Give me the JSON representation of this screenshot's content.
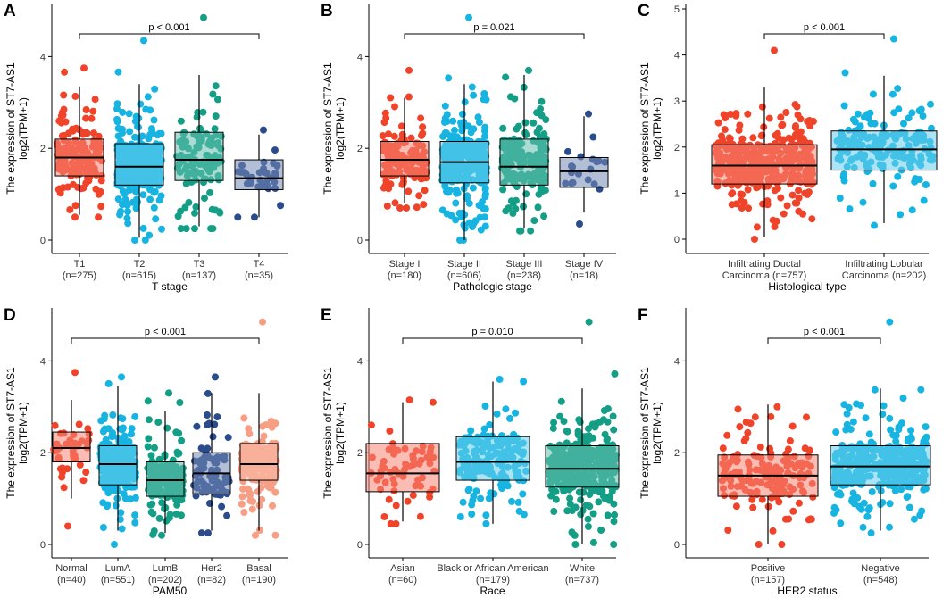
{
  "ylabel_line1": "The expression of ST7-AS1",
  "ylabel_line2": "log2(TPM+1)",
  "colors": {
    "red": "#F0442A",
    "blue": "#17B4E1",
    "teal": "#149E86",
    "navy": "#2B4C8C",
    "salmon": "#F79E84",
    "axis": "#000000"
  },
  "chart_data": [
    {
      "panel": "A",
      "type": "box",
      "xlabel": "T stage",
      "ylim": [
        0,
        5
      ],
      "yticks": [
        0,
        2,
        4
      ],
      "pvalue": "p < 0.001",
      "bracket_groups": [
        0,
        3
      ],
      "groups": [
        {
          "label": "T1",
          "n": "(n=275)",
          "color": "red",
          "box": {
            "min": 0.55,
            "q1": 1.4,
            "median": 1.8,
            "q3": 2.2,
            "max": 3.35,
            "upper_pt": 3.75,
            "lower_pt": 0.5
          },
          "count": 170
        },
        {
          "label": "T2",
          "n": "(n=615)",
          "color": "blue",
          "box": {
            "min": 0.05,
            "q1": 1.2,
            "median": 1.6,
            "q3": 2.1,
            "max": 3.4,
            "upper_pt": 4.35,
            "lower_pt": 0.0
          },
          "count": 330
        },
        {
          "label": "T3",
          "n": "(n=137)",
          "color": "teal",
          "box": {
            "min": 0.3,
            "q1": 1.3,
            "median": 1.75,
            "q3": 2.35,
            "max": 3.6,
            "upper_pt": 4.85,
            "lower_pt": 0.25
          },
          "count": 110
        },
        {
          "label": "T4",
          "n": "(n=35)",
          "color": "navy",
          "box": {
            "min": 0.5,
            "q1": 1.1,
            "median": 1.35,
            "q3": 1.75,
            "max": 2.3,
            "upper_pt": 2.4,
            "lower_pt": 0.5
          },
          "count": 35
        }
      ]
    },
    {
      "panel": "B",
      "type": "box",
      "xlabel": "Pathologic stage",
      "ylim": [
        0,
        5
      ],
      "yticks": [
        0,
        2,
        4
      ],
      "pvalue": "p = 0.021",
      "bracket_groups": [
        0,
        3
      ],
      "groups": [
        {
          "label": "Stage I",
          "n": "(n=180)",
          "color": "red",
          "box": {
            "min": 0.8,
            "q1": 1.4,
            "median": 1.75,
            "q3": 2.15,
            "max": 3.1,
            "upper_pt": 3.7,
            "lower_pt": 0.7
          },
          "count": 150
        },
        {
          "label": "Stage II",
          "n": "(n=606)",
          "color": "blue",
          "box": {
            "min": 0.0,
            "q1": 1.25,
            "median": 1.7,
            "q3": 2.15,
            "max": 3.4,
            "upper_pt": 4.85,
            "lower_pt": 0.0
          },
          "count": 330
        },
        {
          "label": "Stage III",
          "n": "(n=238)",
          "color": "teal",
          "box": {
            "min": 0.25,
            "q1": 1.2,
            "median": 1.6,
            "q3": 2.2,
            "max": 3.6,
            "upper_pt": 3.7,
            "lower_pt": 0.2
          },
          "count": 180
        },
        {
          "label": "Stage IV",
          "n": "(n=18)",
          "color": "navy",
          "box": {
            "min": 0.6,
            "q1": 1.15,
            "median": 1.5,
            "q3": 1.8,
            "max": 2.7,
            "upper_pt": 2.75,
            "lower_pt": 0.35
          },
          "count": 18
        }
      ]
    },
    {
      "panel": "C",
      "type": "box",
      "xlabel": "Histological type",
      "ylim": [
        0,
        5
      ],
      "yticks": [
        0,
        1,
        2,
        3,
        4,
        5
      ],
      "pvalue": "p < 0.001",
      "bracket_groups": [
        0,
        1
      ],
      "groups": [
        {
          "label": "Infiltrating Ductal",
          "label2": "Carcinoma",
          "n": "(n=757)",
          "color": "red",
          "box": {
            "min": 0.05,
            "q1": 1.2,
            "median": 1.6,
            "q3": 2.05,
            "max": 3.3,
            "upper_pt": 4.1,
            "lower_pt": 0.0
          },
          "count": 380
        },
        {
          "label": "Infiltrating Lobular",
          "label2": "Carcinoma",
          "n": "(n=202)",
          "color": "blue",
          "box": {
            "min": 0.35,
            "q1": 1.5,
            "median": 1.95,
            "q3": 2.35,
            "max": 3.55,
            "upper_pt": 4.35,
            "lower_pt": 0.3
          },
          "count": 170
        }
      ]
    },
    {
      "panel": "D",
      "type": "box",
      "xlabel": "PAM50",
      "ylim": [
        0,
        5
      ],
      "yticks": [
        0,
        2,
        4
      ],
      "pvalue": "p < 0.001",
      "bracket_groups": [
        0,
        4
      ],
      "groups": [
        {
          "label": "Normal",
          "n": "(n=40)",
          "color": "red",
          "box": {
            "min": 1.0,
            "q1": 1.8,
            "median": 2.1,
            "q3": 2.45,
            "max": 3.15,
            "upper_pt": 3.75,
            "lower_pt": 0.4
          },
          "count": 40
        },
        {
          "label": "LumA",
          "n": "(n=551)",
          "color": "blue",
          "box": {
            "min": 0.3,
            "q1": 1.3,
            "median": 1.75,
            "q3": 2.15,
            "max": 3.45,
            "upper_pt": 3.65,
            "lower_pt": 0.0
          },
          "count": 280
        },
        {
          "label": "LumB",
          "n": "(n=202)",
          "color": "teal",
          "box": {
            "min": 0.25,
            "q1": 1.05,
            "median": 1.4,
            "q3": 1.8,
            "max": 2.9,
            "upper_pt": 3.3,
            "lower_pt": 0.2
          },
          "count": 170
        },
        {
          "label": "Her2",
          "n": "(n=82)",
          "color": "navy",
          "box": {
            "min": 0.3,
            "q1": 1.1,
            "median": 1.55,
            "q3": 2.0,
            "max": 3.3,
            "upper_pt": 3.65,
            "lower_pt": 0.25
          },
          "count": 82
        },
        {
          "label": "Basal",
          "n": "(n=190)",
          "color": "salmon",
          "box": {
            "min": 0.3,
            "q1": 1.4,
            "median": 1.75,
            "q3": 2.2,
            "max": 3.3,
            "upper_pt": 4.85,
            "lower_pt": 0.2
          },
          "count": 170
        }
      ]
    },
    {
      "panel": "E",
      "type": "box",
      "xlabel": "Race",
      "ylim": [
        0,
        5
      ],
      "yticks": [
        0,
        2,
        4
      ],
      "pvalue": "p = 0.010",
      "bracket_groups": [
        0,
        2
      ],
      "groups": [
        {
          "label": "Asian",
          "n": "(n=60)",
          "color": "red",
          "box": {
            "min": 0.5,
            "q1": 1.15,
            "median": 1.55,
            "q3": 2.2,
            "max": 3.1,
            "upper_pt": 3.15,
            "lower_pt": 0.45
          },
          "count": 60
        },
        {
          "label": "Black or African American",
          "n": "(n=179)",
          "color": "blue",
          "box": {
            "min": 0.45,
            "q1": 1.4,
            "median": 1.8,
            "q3": 2.35,
            "max": 3.55,
            "upper_pt": 3.6,
            "lower_pt": 0.45
          },
          "count": 170
        },
        {
          "label": "White",
          "n": "(n=737)",
          "color": "teal",
          "box": {
            "min": 0.0,
            "q1": 1.25,
            "median": 1.65,
            "q3": 2.15,
            "max": 3.4,
            "upper_pt": 4.85,
            "lower_pt": 0.0
          },
          "count": 380
        }
      ]
    },
    {
      "panel": "F",
      "type": "box",
      "xlabel": "HER2 status",
      "ylim": [
        0,
        5
      ],
      "yticks": [
        0,
        2,
        4
      ],
      "pvalue": "p < 0.001",
      "bracket_groups": [
        0,
        1
      ],
      "groups": [
        {
          "label": "Positive",
          "n": "(n=157)",
          "color": "red",
          "box": {
            "min": 0.0,
            "q1": 1.05,
            "median": 1.5,
            "q3": 1.95,
            "max": 3.05,
            "upper_pt": 3.0,
            "lower_pt": 0.0
          },
          "count": 157
        },
        {
          "label": "Negative",
          "n": "(n=548)",
          "color": "blue",
          "box": {
            "min": 0.3,
            "q1": 1.3,
            "median": 1.7,
            "q3": 2.15,
            "max": 3.4,
            "upper_pt": 4.85,
            "lower_pt": 0.25
          },
          "count": 330
        }
      ]
    }
  ]
}
